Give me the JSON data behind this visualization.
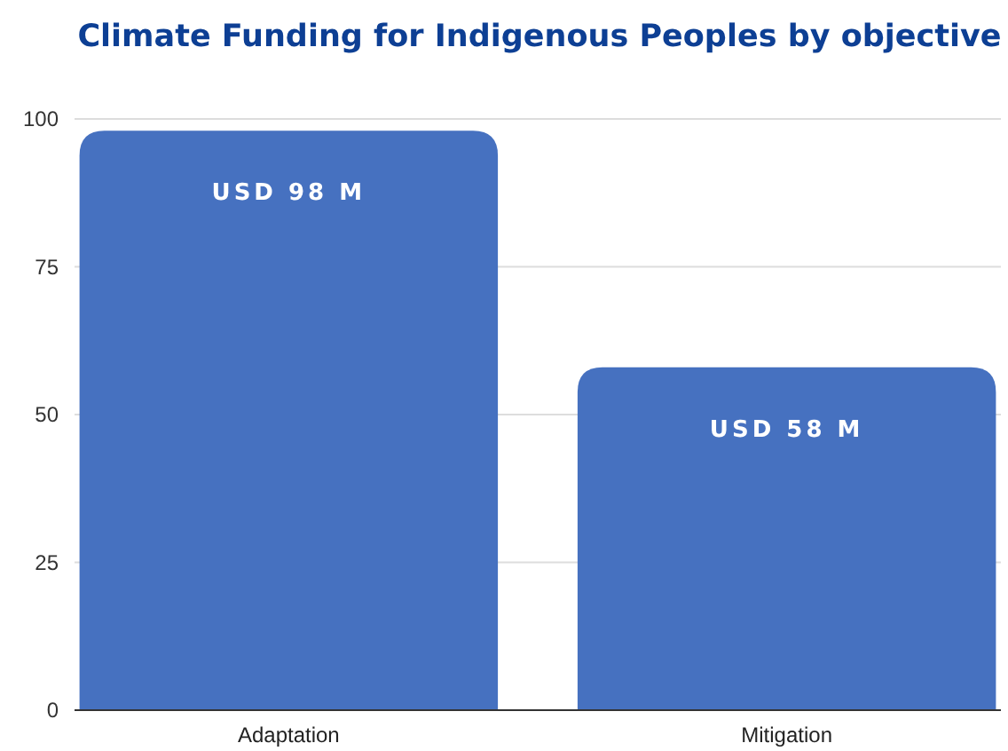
{
  "chart_data": {
    "type": "bar",
    "title": "Climate Funding for Indigenous Peoples by objective",
    "categories": [
      "Adaptation",
      "Mitigation"
    ],
    "values": [
      98,
      58
    ],
    "color": "#4671c0",
    "value_labels": [
      "USD 98 M",
      "USD 58 M"
    ],
    "ylim": [
      0,
      100
    ],
    "yticks": [
      0,
      25,
      50,
      75,
      100
    ],
    "grid": "y"
  }
}
